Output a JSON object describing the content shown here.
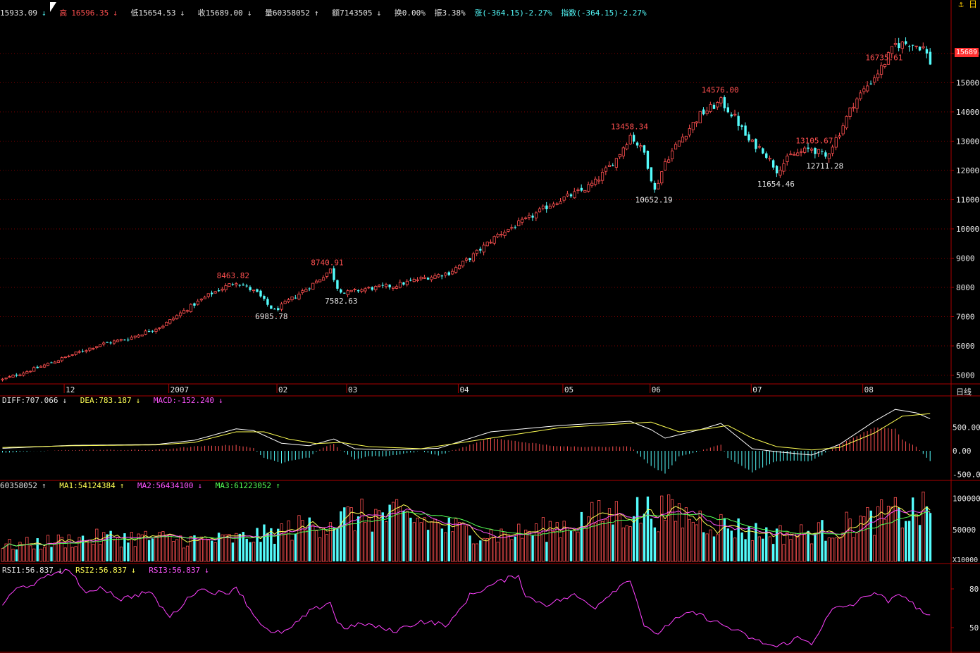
{
  "header": {
    "open": "15933.09",
    "open_arrow": "↓",
    "high_label": "高",
    "high_value": "16596.35",
    "high_arrow": "↓",
    "low": "低15654.53",
    "low_arrow": "↓",
    "close": "收15689.00",
    "close_arrow": "↓",
    "volume": "量60358052",
    "volume_arrow": "↑",
    "amount": "额7143505",
    "amount_arrow": "↓",
    "turnover": "换0.00%",
    "amplitude": "振3.38%",
    "change": "涨(-364.15)-2.27%",
    "index": "指数(-364.15)-2.27%"
  },
  "price_tag": "15689",
  "period_label": "日线",
  "top_icons": "⚓ 日",
  "colors": {
    "background": "#000000",
    "up": "#ff5050",
    "down": "#54fcfc",
    "grid": "#7a0000",
    "axis": "#aa0000",
    "diff": "#ffffff",
    "dea": "#ffff54",
    "ma1": "#ffff54",
    "ma2": "#ff54ff",
    "ma3": "#54ff54",
    "rsi": "#ff40ff"
  },
  "macd": {
    "diff": "DIFF:707.066",
    "diff_arrow": "↓",
    "dea": "DEA:783.187",
    "dea_arrow": "↓",
    "macd": "MACD:-152.240",
    "macd_arrow": "↓"
  },
  "vol": {
    "vol": "60358052",
    "vol_arrow": "↑",
    "ma1": "MA1:54124384",
    "ma1_arrow": "↑",
    "ma2": "MA2:56434100",
    "ma2_arrow": "↓",
    "ma3": "MA3:61223052",
    "ma3_arrow": "↑"
  },
  "rsi": {
    "rsi1": "RSI1:56.837",
    "rsi1_arrow": "↓",
    "rsi2": "RSI2:56.837",
    "rsi2_arrow": "↓",
    "rsi3": "RSI3:56.837",
    "rsi3_arrow": "↓"
  },
  "chart_data": {
    "type": "candlestick",
    "period": "daily",
    "price_ylim": [
      4700,
      17200
    ],
    "price_ticks": [
      5000,
      6000,
      7000,
      8000,
      9000,
      10000,
      11000,
      12000,
      13000,
      14000,
      15000,
      16000
    ],
    "x_labels": [
      "12",
      "2007",
      "02",
      "03",
      "04",
      "05",
      "06",
      "07",
      "08"
    ],
    "x_label_index": [
      18,
      48,
      79,
      99,
      131,
      161,
      186,
      215,
      247
    ],
    "annotations": [
      {
        "i": 67,
        "text": "8463.82",
        "kind": "high"
      },
      {
        "i": 78,
        "text": "6985.78",
        "kind": "low"
      },
      {
        "i": 94,
        "text": "8740.91",
        "kind": "high"
      },
      {
        "i": 98,
        "text": "7582.63",
        "kind": "low"
      },
      {
        "i": 180,
        "text": "13458.34",
        "kind": "high"
      },
      {
        "i": 187,
        "text": "10652.19",
        "kind": "low"
      },
      {
        "i": 206,
        "text": "14576.00",
        "kind": "high"
      },
      {
        "i": 222,
        "text": "11654.46",
        "kind": "low"
      },
      {
        "i": 233,
        "text": "13105.67",
        "kind": "high"
      },
      {
        "i": 236,
        "text": "12711.28",
        "kind": "low"
      },
      {
        "i": 253,
        "text": "16735.61",
        "kind": "high"
      }
    ],
    "close_anchors": [
      [
        0,
        4850
      ],
      [
        10,
        5250
      ],
      [
        20,
        5700
      ],
      [
        28,
        6050
      ],
      [
        36,
        6250
      ],
      [
        46,
        6700
      ],
      [
        52,
        7200
      ],
      [
        60,
        7800
      ],
      [
        67,
        8200
      ],
      [
        73,
        7800
      ],
      [
        76,
        7400
      ],
      [
        78,
        7200
      ],
      [
        84,
        7700
      ],
      [
        90,
        8200
      ],
      [
        94,
        8600
      ],
      [
        96,
        8000
      ],
      [
        98,
        7800
      ],
      [
        104,
        7950
      ],
      [
        112,
        8050
      ],
      [
        120,
        8300
      ],
      [
        128,
        8500
      ],
      [
        134,
        9000
      ],
      [
        142,
        9800
      ],
      [
        150,
        10300
      ],
      [
        158,
        10900
      ],
      [
        166,
        11300
      ],
      [
        170,
        11600
      ],
      [
        176,
        12400
      ],
      [
        180,
        13200
      ],
      [
        184,
        12600
      ],
      [
        187,
        11300
      ],
      [
        190,
        12300
      ],
      [
        194,
        13000
      ],
      [
        200,
        13900
      ],
      [
        206,
        14350
      ],
      [
        210,
        13800
      ],
      [
        214,
        13000
      ],
      [
        218,
        12700
      ],
      [
        222,
        12000
      ],
      [
        226,
        12500
      ],
      [
        232,
        12750
      ],
      [
        236,
        12450
      ],
      [
        240,
        13300
      ],
      [
        244,
        14300
      ],
      [
        248,
        14900
      ],
      [
        252,
        15500
      ],
      [
        256,
        16300
      ],
      [
        260,
        16350
      ],
      [
        264,
        16200
      ],
      [
        266,
        15689
      ]
    ],
    "macd_ylim": [
      -600,
      1050
    ],
    "macd_ticks": [
      500,
      0,
      -500
    ],
    "diff_anchors": [
      [
        0,
        0.06
      ],
      [
        20,
        0.13
      ],
      [
        44,
        0.15
      ],
      [
        55,
        0.25
      ],
      [
        67,
        0.52
      ],
      [
        72,
        0.48
      ],
      [
        80,
        0.18
      ],
      [
        88,
        0.12
      ],
      [
        95,
        0.28
      ],
      [
        101,
        0.05
      ],
      [
        110,
        0.02
      ],
      [
        125,
        0.06
      ],
      [
        140,
        0.45
      ],
      [
        160,
        0.6
      ],
      [
        180,
        0.7
      ],
      [
        186,
        0.5
      ],
      [
        190,
        0.3
      ],
      [
        200,
        0.5
      ],
      [
        206,
        0.65
      ],
      [
        215,
        0.05
      ],
      [
        222,
        -0.02
      ],
      [
        232,
        -0.1
      ],
      [
        240,
        0.15
      ],
      [
        250,
        0.7
      ],
      [
        256,
        0.98
      ],
      [
        262,
        0.9
      ],
      [
        266,
        0.76
      ]
    ],
    "dea_anchors": [
      [
        0,
        0.08
      ],
      [
        20,
        0.12
      ],
      [
        44,
        0.14
      ],
      [
        55,
        0.2
      ],
      [
        67,
        0.45
      ],
      [
        75,
        0.45
      ],
      [
        82,
        0.28
      ],
      [
        90,
        0.17
      ],
      [
        97,
        0.2
      ],
      [
        105,
        0.1
      ],
      [
        120,
        0.05
      ],
      [
        140,
        0.3
      ],
      [
        160,
        0.55
      ],
      [
        180,
        0.65
      ],
      [
        186,
        0.68
      ],
      [
        194,
        0.45
      ],
      [
        202,
        0.52
      ],
      [
        208,
        0.6
      ],
      [
        215,
        0.3
      ],
      [
        222,
        0.1
      ],
      [
        232,
        0.02
      ],
      [
        240,
        0.08
      ],
      [
        250,
        0.42
      ],
      [
        258,
        0.82
      ],
      [
        266,
        0.88
      ]
    ],
    "vol_ylim": [
      0,
      125000000
    ],
    "vol_ticks": [
      100000,
      50000
    ],
    "vol_unit": "X10000",
    "rsi_ylim": [
      32,
      98
    ],
    "rsi_ticks": [
      80,
      50
    ],
    "rsi_anchors": [
      [
        0,
        68
      ],
      [
        4,
        80
      ],
      [
        10,
        85
      ],
      [
        16,
        94
      ],
      [
        20,
        93
      ],
      [
        24,
        75
      ],
      [
        28,
        82
      ],
      [
        34,
        72
      ],
      [
        42,
        78
      ],
      [
        48,
        58
      ],
      [
        56,
        80
      ],
      [
        64,
        76
      ],
      [
        67,
        82
      ],
      [
        72,
        60
      ],
      [
        77,
        45
      ],
      [
        82,
        48
      ],
      [
        88,
        62
      ],
      [
        94,
        70
      ],
      [
        96,
        54
      ],
      [
        98,
        50
      ],
      [
        104,
        53
      ],
      [
        112,
        47
      ],
      [
        120,
        55
      ],
      [
        128,
        52
      ],
      [
        134,
        75
      ],
      [
        142,
        85
      ],
      [
        148,
        91
      ],
      [
        150,
        74
      ],
      [
        156,
        68
      ],
      [
        164,
        75
      ],
      [
        170,
        66
      ],
      [
        174,
        76
      ],
      [
        180,
        88
      ],
      [
        184,
        52
      ],
      [
        187,
        44
      ],
      [
        192,
        55
      ],
      [
        198,
        62
      ],
      [
        204,
        55
      ],
      [
        210,
        48
      ],
      [
        216,
        40
      ],
      [
        222,
        35
      ],
      [
        228,
        42
      ],
      [
        232,
        38
      ],
      [
        238,
        64
      ],
      [
        244,
        68
      ],
      [
        250,
        78
      ],
      [
        254,
        70
      ],
      [
        258,
        76
      ],
      [
        262,
        66
      ],
      [
        266,
        58
      ]
    ]
  }
}
